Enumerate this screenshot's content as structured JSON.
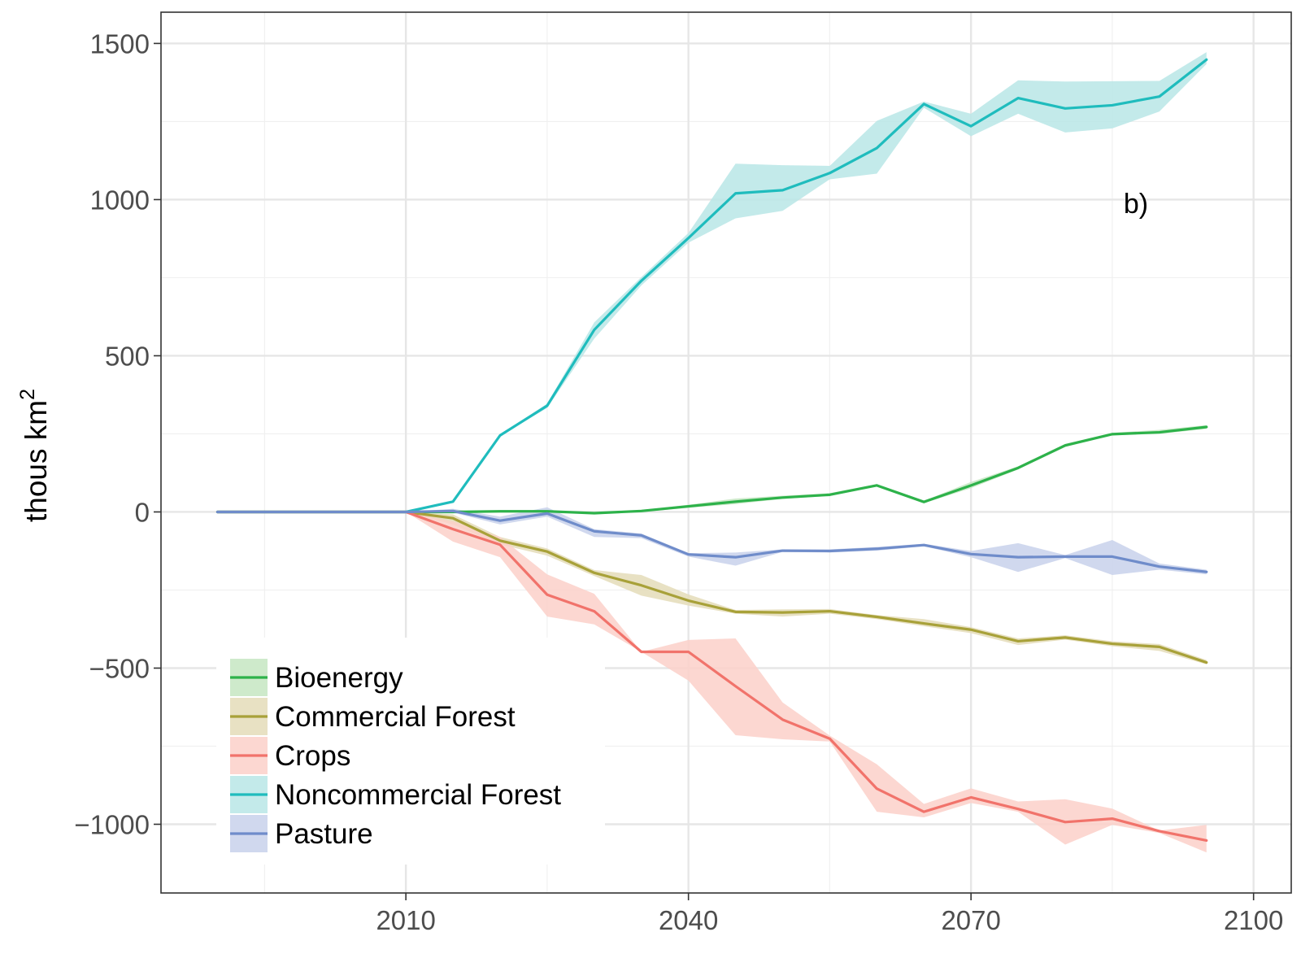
{
  "chart_data": {
    "type": "line",
    "panel_label": "b)",
    "ylabel": "thous km",
    "ylabel_superscript": "2",
    "xlabel": "",
    "xlim": [
      1984,
      2104
    ],
    "ylim": [
      -1220,
      1600
    ],
    "x_ticks": [
      2010,
      2040,
      2070,
      2100
    ],
    "x_tick_labels": [
      "2010",
      "2040",
      "2070",
      "2100"
    ],
    "y_ticks": [
      1500,
      1000,
      500,
      0,
      -500,
      -1000
    ],
    "y_tick_labels": [
      "1500",
      "1000",
      "500",
      "0",
      "−500",
      "−1000"
    ],
    "grid": true,
    "legend_position": "bottom-left",
    "uncertainty_bands": true,
    "series": [
      {
        "name": "Bioenergy",
        "color": "#2DB24A",
        "fill": "#C6E6C2",
        "x": [
          1990,
          2010,
          2015,
          2020,
          2025,
          2030,
          2035,
          2040,
          2045,
          2050,
          2055,
          2060,
          2065,
          2070,
          2075,
          2080,
          2085,
          2090,
          2095
        ],
        "y": [
          0,
          0,
          0,
          2,
          2,
          -4,
          3,
          18,
          33,
          46,
          55,
          85,
          32,
          85,
          141,
          213,
          249,
          255,
          272
        ],
        "lower": [
          0,
          0,
          0,
          0,
          0,
          -7,
          0,
          13,
          25,
          42,
          51,
          82,
          28,
          76,
          136,
          208,
          246,
          250,
          266
        ],
        "upper": [
          0,
          0,
          0,
          4,
          4,
          -2,
          6,
          23,
          43,
          52,
          60,
          89,
          36,
          96,
          146,
          218,
          253,
          263,
          278
        ]
      },
      {
        "name": "Commercial Forest",
        "color": "#A8A139",
        "fill": "#E4DCB9",
        "x": [
          1990,
          2010,
          2015,
          2020,
          2025,
          2030,
          2035,
          2040,
          2045,
          2050,
          2055,
          2060,
          2065,
          2070,
          2075,
          2080,
          2085,
          2090,
          2095
        ],
        "y": [
          0,
          0,
          -20,
          -92,
          -127,
          -195,
          -235,
          -284,
          -320,
          -322,
          -318,
          -336,
          -357,
          -377,
          -414,
          -402,
          -422,
          -432,
          -482
        ],
        "lower": [
          0,
          0,
          -40,
          -104,
          -140,
          -205,
          -268,
          -300,
          -326,
          -335,
          -326,
          -343,
          -366,
          -388,
          -426,
          -409,
          -430,
          -445,
          -488
        ],
        "upper": [
          0,
          0,
          -8,
          -80,
          -117,
          -186,
          -202,
          -264,
          -314,
          -312,
          -311,
          -330,
          -343,
          -369,
          -405,
          -395,
          -414,
          -423,
          -474
        ]
      },
      {
        "name": "Crops",
        "color": "#F1736B",
        "fill": "#FCD0C9",
        "x": [
          1990,
          2010,
          2015,
          2020,
          2025,
          2030,
          2035,
          2040,
          2045,
          2050,
          2055,
          2060,
          2065,
          2070,
          2075,
          2080,
          2085,
          2090,
          2095
        ],
        "y": [
          0,
          0,
          -55,
          -105,
          -265,
          -318,
          -448,
          -448,
          -558,
          -665,
          -726,
          -886,
          -960,
          -914,
          -951,
          -993,
          -982,
          -1022,
          -1052
        ],
        "lower": [
          0,
          0,
          -95,
          -145,
          -335,
          -360,
          -448,
          -540,
          -715,
          -728,
          -735,
          -960,
          -978,
          -932,
          -960,
          -1065,
          -1002,
          -1028,
          -1090
        ],
        "upper": [
          0,
          0,
          -30,
          -80,
          -200,
          -262,
          -448,
          -410,
          -405,
          -610,
          -716,
          -808,
          -935,
          -885,
          -927,
          -920,
          -950,
          -1020,
          -1002
        ]
      },
      {
        "name": "Noncommercial Forest",
        "color": "#1FBCBD",
        "fill": "#B8E6E6",
        "x": [
          1990,
          2010,
          2015,
          2020,
          2025,
          2030,
          2035,
          2040,
          2045,
          2050,
          2055,
          2060,
          2065,
          2070,
          2075,
          2080,
          2085,
          2090,
          2095
        ],
        "y": [
          0,
          0,
          33,
          245,
          340,
          583,
          740,
          877,
          1020,
          1030,
          1085,
          1165,
          1306,
          1235,
          1325,
          1292,
          1302,
          1330,
          1448
        ],
        "lower": [
          0,
          0,
          33,
          243,
          333,
          555,
          725,
          862,
          940,
          964,
          1065,
          1083,
          1294,
          1203,
          1275,
          1215,
          1228,
          1282,
          1434
        ],
        "upper": [
          0,
          0,
          33,
          247,
          347,
          607,
          752,
          893,
          1115,
          1110,
          1108,
          1252,
          1314,
          1275,
          1382,
          1378,
          1379,
          1380,
          1472
        ]
      },
      {
        "name": "Pasture",
        "color": "#6F8CCA",
        "fill": "#C8D1EB",
        "x": [
          1990,
          2010,
          2015,
          2020,
          2025,
          2030,
          2035,
          2040,
          2045,
          2050,
          2055,
          2060,
          2065,
          2070,
          2075,
          2080,
          2085,
          2090,
          2095
        ],
        "y": [
          0,
          0,
          3,
          -28,
          -5,
          -62,
          -75,
          -136,
          -145,
          -124,
          -125,
          -118,
          -106,
          -135,
          -145,
          -143,
          -143,
          -175,
          -192
        ],
        "lower": [
          0,
          0,
          -2,
          -40,
          -15,
          -80,
          -84,
          -143,
          -172,
          -128,
          -130,
          -124,
          -110,
          -145,
          -192,
          -148,
          -202,
          -185,
          -200
        ],
        "upper": [
          0,
          0,
          10,
          -15,
          15,
          -55,
          -69,
          -132,
          -130,
          -120,
          -120,
          -112,
          -102,
          -125,
          -100,
          -138,
          -90,
          -165,
          -185
        ]
      }
    ]
  }
}
